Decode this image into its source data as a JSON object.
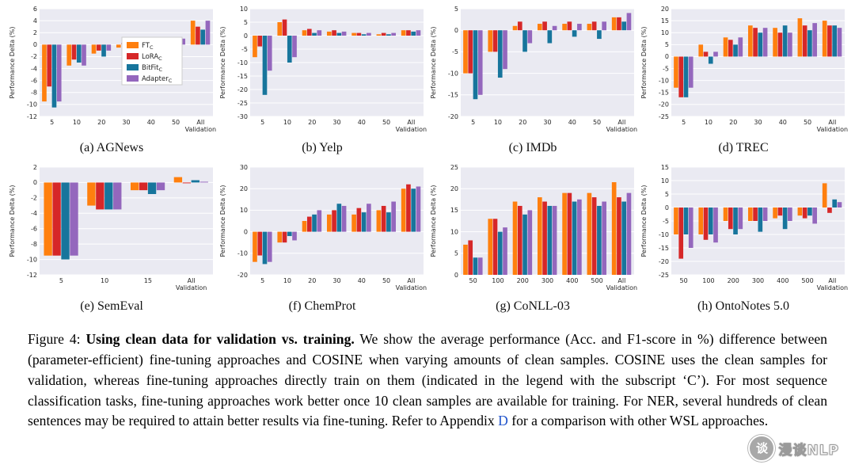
{
  "caption": {
    "prefix": "Figure 4: ",
    "bold": "Using clean data for validation vs. training.",
    "body": " We show the average performance (Acc. and F1-score in %) difference between (parameter-efficient) fine-tuning approaches and COSINE when varying amounts of clean samples. COSINE uses the clean samples for validation, whereas fine-tuning approaches directly train on them (indicated in the legend with the subscript ‘C’). For most sequence classification tasks, fine-tuning approaches work better once 10 clean samples are available for training. For NER, several hundreds of clean sentences may be required to attain better results via fine-tuning. Refer to Appendix ",
    "link_text": "D",
    "tail": " for a comparison with other WSL approaches."
  },
  "legend": {
    "entries": [
      {
        "base": "FT",
        "sub": "C",
        "color": "#ff7f0e"
      },
      {
        "base": "LoRA",
        "sub": "C",
        "color": "#d62728"
      },
      {
        "base": "BitFit",
        "sub": "C",
        "color": "#17759c"
      },
      {
        "base": "Adapter",
        "sub": "C",
        "color": "#9467bd"
      }
    ]
  },
  "watermark": {
    "text": "漫谈NLP",
    "glyph": "谈"
  },
  "chart_data": [
    {
      "type": "bar",
      "label": "(a) AGNews",
      "ylabel": "Performance Delta (%)",
      "categories": [
        "5",
        "10",
        "20",
        "30",
        "40",
        "50",
        "All"
      ],
      "last_category_sub": "Validation",
      "ylim": [
        -12,
        6
      ],
      "yticks": [
        6,
        4,
        2,
        0,
        -2,
        -4,
        -6,
        -8,
        -10,
        -12
      ],
      "show_legend": true,
      "series": [
        {
          "name": "FT_C",
          "values": [
            -9.5,
            -3.5,
            -1.5,
            -0.5,
            -0.5,
            0.3,
            4.0
          ]
        },
        {
          "name": "LoRA_C",
          "values": [
            -7.0,
            -2.5,
            -1.0,
            0.3,
            0.3,
            0.5,
            3.0
          ]
        },
        {
          "name": "BitFit_C",
          "values": [
            -10.5,
            -3.0,
            -2.0,
            -1.0,
            -1.2,
            -0.5,
            2.5
          ]
        },
        {
          "name": "Adapter_C",
          "values": [
            -9.5,
            -3.5,
            -1.0,
            0.3,
            0.5,
            1.0,
            4.0
          ]
        }
      ]
    },
    {
      "type": "bar",
      "label": "(b) Yelp",
      "ylabel": "Performance Delta (%)",
      "categories": [
        "5",
        "10",
        "20",
        "30",
        "40",
        "50",
        "All"
      ],
      "last_category_sub": "Validation",
      "ylim": [
        -30,
        10
      ],
      "yticks": [
        10,
        5,
        0,
        -5,
        -10,
        -15,
        -20,
        -25,
        -30
      ],
      "show_legend": false,
      "series": [
        {
          "name": "FT_C",
          "values": [
            -8,
            5,
            2,
            1.5,
            1,
            0.5,
            2
          ]
        },
        {
          "name": "LoRA_C",
          "values": [
            -4,
            6,
            2.5,
            2,
            1,
            1,
            2
          ]
        },
        {
          "name": "BitFit_C",
          "values": [
            -22,
            -10,
            1,
            1,
            0.5,
            0.5,
            1.5
          ]
        },
        {
          "name": "Adapter_C",
          "values": [
            -13,
            -8,
            2,
            1.5,
            1,
            1,
            2
          ]
        }
      ]
    },
    {
      "type": "bar",
      "label": "(c) IMDb",
      "ylabel": "Performance Delta (%)",
      "categories": [
        "5",
        "10",
        "20",
        "30",
        "40",
        "50",
        "All"
      ],
      "last_category_sub": "Validation",
      "ylim": [
        -20,
        5
      ],
      "yticks": [
        5,
        0,
        -5,
        -10,
        -15,
        -20
      ],
      "show_legend": false,
      "series": [
        {
          "name": "FT_C",
          "values": [
            -10,
            -5,
            1,
            1.5,
            1.5,
            1.5,
            3
          ]
        },
        {
          "name": "LoRA_C",
          "values": [
            -10,
            -5,
            2,
            2,
            2,
            2,
            3
          ]
        },
        {
          "name": "BitFit_C",
          "values": [
            -16,
            -11,
            -5,
            -3,
            -1.5,
            -2,
            2
          ]
        },
        {
          "name": "Adapter_C",
          "values": [
            -15,
            -9,
            -3,
            1,
            1.5,
            2,
            4
          ]
        }
      ]
    },
    {
      "type": "bar",
      "label": "(d) TREC",
      "ylabel": "Performance Delta (%)",
      "categories": [
        "5",
        "10",
        "20",
        "30",
        "40",
        "50",
        "All"
      ],
      "last_category_sub": "Validation",
      "ylim": [
        -25,
        20
      ],
      "yticks": [
        20,
        15,
        10,
        5,
        0,
        -5,
        -10,
        -15,
        -20,
        -25
      ],
      "show_legend": false,
      "series": [
        {
          "name": "FT_C",
          "values": [
            -13,
            5,
            8,
            13,
            12,
            16,
            15
          ]
        },
        {
          "name": "LoRA_C",
          "values": [
            -17,
            2,
            7,
            12,
            10,
            13,
            13
          ]
        },
        {
          "name": "BitFit_C",
          "values": [
            -17,
            -3,
            5,
            10,
            13,
            11,
            13
          ]
        },
        {
          "name": "Adapter_C",
          "values": [
            -13,
            2,
            8,
            12,
            10,
            14,
            12
          ]
        }
      ]
    },
    {
      "type": "bar",
      "label": "(e) SemEval",
      "ylabel": "Performance Delta (%)",
      "categories": [
        "5",
        "10",
        "15",
        "All"
      ],
      "last_category_sub": "Validation",
      "ylim": [
        -12,
        2
      ],
      "yticks": [
        2,
        0,
        -2,
        -4,
        -6,
        -8,
        -10,
        -12
      ],
      "show_legend": false,
      "series": [
        {
          "name": "FT_C",
          "values": [
            -9.5,
            -3.0,
            -1.0,
            0.7
          ]
        },
        {
          "name": "LoRA_C",
          "values": [
            -9.5,
            -3.5,
            -1.0,
            -0.1
          ]
        },
        {
          "name": "BitFit_C",
          "values": [
            -10.0,
            -3.5,
            -1.5,
            0.3
          ]
        },
        {
          "name": "Adapter_C",
          "values": [
            -9.5,
            -3.5,
            -1.0,
            0.1
          ]
        }
      ]
    },
    {
      "type": "bar",
      "label": "(f) ChemProt",
      "ylabel": "Performance Delta (%)",
      "categories": [
        "5",
        "10",
        "20",
        "30",
        "40",
        "50",
        "All"
      ],
      "last_category_sub": "Validation",
      "ylim": [
        -20,
        30
      ],
      "yticks": [
        30,
        20,
        10,
        0,
        -10,
        -20
      ],
      "show_legend": false,
      "series": [
        {
          "name": "FT_C",
          "values": [
            -14,
            -5,
            5,
            8,
            8,
            10,
            20
          ]
        },
        {
          "name": "LoRA_C",
          "values": [
            -11,
            -5,
            7,
            10,
            11,
            12,
            22
          ]
        },
        {
          "name": "BitFit_C",
          "values": [
            -15,
            -2,
            8,
            13,
            9,
            9,
            20
          ]
        },
        {
          "name": "Adapter_C",
          "values": [
            -14,
            -4,
            10,
            12,
            13,
            14,
            21
          ]
        }
      ]
    },
    {
      "type": "bar",
      "label": "(g) CoNLL-03",
      "ylabel": "Performance Delta (%)",
      "categories": [
        "50",
        "100",
        "200",
        "300",
        "400",
        "500",
        "All"
      ],
      "last_category_sub": "Validation",
      "ylim": [
        0,
        25
      ],
      "yticks": [
        25,
        20,
        15,
        10,
        5,
        0
      ],
      "show_legend": false,
      "series": [
        {
          "name": "FT_C",
          "values": [
            7,
            13,
            17,
            18,
            19,
            19,
            21.5
          ]
        },
        {
          "name": "LoRA_C",
          "values": [
            8,
            13,
            16,
            17,
            19,
            18,
            18
          ]
        },
        {
          "name": "BitFit_C",
          "values": [
            4,
            10,
            14,
            16,
            17,
            16,
            17
          ]
        },
        {
          "name": "Adapter_C",
          "values": [
            4,
            11,
            15,
            16,
            17.5,
            17,
            19
          ]
        }
      ]
    },
    {
      "type": "bar",
      "label": "(h) OntoNotes 5.0",
      "ylabel": "Performance Delta (%)",
      "categories": [
        "50",
        "100",
        "200",
        "300",
        "400",
        "500",
        "All"
      ],
      "last_category_sub": "Validation",
      "ylim": [
        -25,
        15
      ],
      "yticks": [
        15,
        10,
        5,
        0,
        -5,
        -10,
        -15,
        -20,
        -25
      ],
      "show_legend": false,
      "series": [
        {
          "name": "FT_C",
          "values": [
            -10,
            -10,
            -5,
            -5,
            -4,
            -3,
            9
          ]
        },
        {
          "name": "LoRA_C",
          "values": [
            -19,
            -12,
            -8,
            -5,
            -3,
            -4,
            -2
          ]
        },
        {
          "name": "BitFit_C",
          "values": [
            -10,
            -10,
            -10,
            -9,
            -8,
            -3,
            3
          ]
        },
        {
          "name": "Adapter_C",
          "values": [
            -15,
            -13,
            -8,
            -5,
            -5,
            -6,
            2
          ]
        }
      ]
    }
  ]
}
